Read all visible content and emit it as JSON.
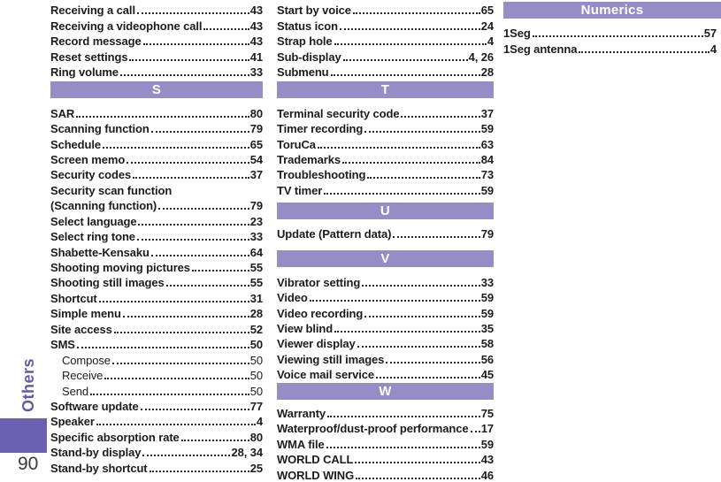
{
  "sidebar": {
    "section_label": "Others",
    "page_number": "90"
  },
  "colors": {
    "section_band": "#968cc6",
    "band_text": "#ffffff",
    "sidebar_tab": "#6c60b0",
    "sidebar_label_text": "#6a58ad",
    "entry_text": "#1c1c1c"
  },
  "index_columns": [
    {
      "blocks": [
        {
          "type": "entries",
          "items": [
            {
              "label": "Receiving a call",
              "page": "43"
            },
            {
              "label": "Receiving a videophone call",
              "page": "43"
            },
            {
              "label": "Record message",
              "page": "43"
            },
            {
              "label": "Reset settings",
              "page": "41"
            },
            {
              "label": "Ring volume",
              "page": "33"
            }
          ]
        },
        {
          "type": "header",
          "label": "S"
        },
        {
          "type": "entries",
          "items": [
            {
              "label": "SAR",
              "page": "80"
            },
            {
              "label": "Scanning function",
              "page": "79"
            },
            {
              "label": "Schedule",
              "page": "65"
            },
            {
              "label": "Screen memo",
              "page": "54"
            },
            {
              "label": "Security codes",
              "page": "37"
            },
            {
              "label": "Security scan function",
              "page": ""
            },
            {
              "label": "(Scanning function)",
              "page": "79"
            },
            {
              "label": "Select language",
              "page": "23"
            },
            {
              "label": "Select ring tone",
              "page": "33"
            },
            {
              "label": "Shabette-Kensaku",
              "page": "64"
            },
            {
              "label": "Shooting moving pictures",
              "page": "55"
            },
            {
              "label": "Shooting still images",
              "page": "55"
            },
            {
              "label": "Shortcut",
              "page": "31"
            },
            {
              "label": "Simple menu",
              "page": "28"
            },
            {
              "label": "Site access",
              "page": "52"
            },
            {
              "label": "SMS",
              "page": "50"
            },
            {
              "label": "Compose",
              "page": "50",
              "sub": true
            },
            {
              "label": "Receive",
              "page": "50",
              "sub": true
            },
            {
              "label": "Send",
              "page": "50",
              "sub": true
            },
            {
              "label": "Software update",
              "page": "77"
            },
            {
              "label": "Speaker",
              "page": "4"
            },
            {
              "label": "Specific absorption rate",
              "page": "80"
            },
            {
              "label": "Stand-by display",
              "page": "28, 34"
            },
            {
              "label": "Stand-by shortcut",
              "page": "25"
            }
          ]
        }
      ]
    },
    {
      "blocks": [
        {
          "type": "entries",
          "items": [
            {
              "label": "Start by voice",
              "page": "65"
            },
            {
              "label": "Status icon",
              "page": "24"
            },
            {
              "label": "Strap hole",
              "page": "4"
            },
            {
              "label": "Sub-display",
              "page": "4, 26"
            },
            {
              "label": "Submenu",
              "page": "28"
            }
          ]
        },
        {
          "type": "header",
          "label": "T"
        },
        {
          "type": "entries",
          "items": [
            {
              "label": "Terminal security code",
              "page": "37"
            },
            {
              "label": "Timer recording",
              "page": "59"
            },
            {
              "label": "ToruCa",
              "page": "63"
            },
            {
              "label": "Trademarks",
              "page": "84"
            },
            {
              "label": "Troubleshooting",
              "page": "73"
            },
            {
              "label": "TV timer",
              "page": "59"
            }
          ]
        },
        {
          "type": "header",
          "label": "U"
        },
        {
          "type": "entries",
          "items": [
            {
              "label": "Update (Pattern data)",
              "page": "79"
            }
          ]
        },
        {
          "type": "header",
          "label": "V"
        },
        {
          "type": "entries",
          "items": [
            {
              "label": "Vibrator setting",
              "page": "33"
            },
            {
              "label": "Video",
              "page": "59"
            },
            {
              "label": "Video recording",
              "page": "59"
            },
            {
              "label": "View blind",
              "page": "35"
            },
            {
              "label": "Viewer display",
              "page": "58"
            },
            {
              "label": "Viewing still images",
              "page": "56"
            },
            {
              "label": "Voice mail service",
              "page": "45"
            }
          ]
        },
        {
          "type": "header",
          "label": "W"
        },
        {
          "type": "entries",
          "items": [
            {
              "label": "Warranty",
              "page": "75"
            },
            {
              "label": "Waterproof/dust-proof performance",
              "page": "17"
            },
            {
              "label": "WMA file",
              "page": "59"
            },
            {
              "label": "WORLD CALL",
              "page": "43"
            },
            {
              "label": "WORLD WING",
              "page": "46"
            }
          ]
        }
      ]
    },
    {
      "blocks": [
        {
          "type": "header",
          "label": "Numerics"
        },
        {
          "type": "entries",
          "items": [
            {
              "label": "1Seg",
              "page": "57"
            },
            {
              "label": "1Seg antenna",
              "page": "4"
            }
          ]
        }
      ]
    }
  ]
}
